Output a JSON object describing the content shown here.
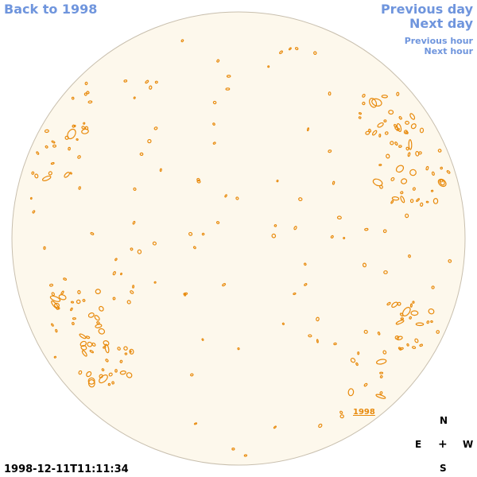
{
  "nav": {
    "back": "Back to 1998",
    "previous_day": "Previous day",
    "next_day": "Next day",
    "previous_hour": "Previous hour",
    "next_hour": "Next hour"
  },
  "timestamp": "1998-12-11T11:11:34",
  "year_label": "1998",
  "compass": {
    "north": "N",
    "east": "E",
    "center": "+",
    "west": "W",
    "south": "S"
  },
  "colors": {
    "link": "#6f95dd",
    "disk_fill": "#fdf8ec",
    "disk_edge": "#c8bfae",
    "contour": "#e88a0c"
  }
}
